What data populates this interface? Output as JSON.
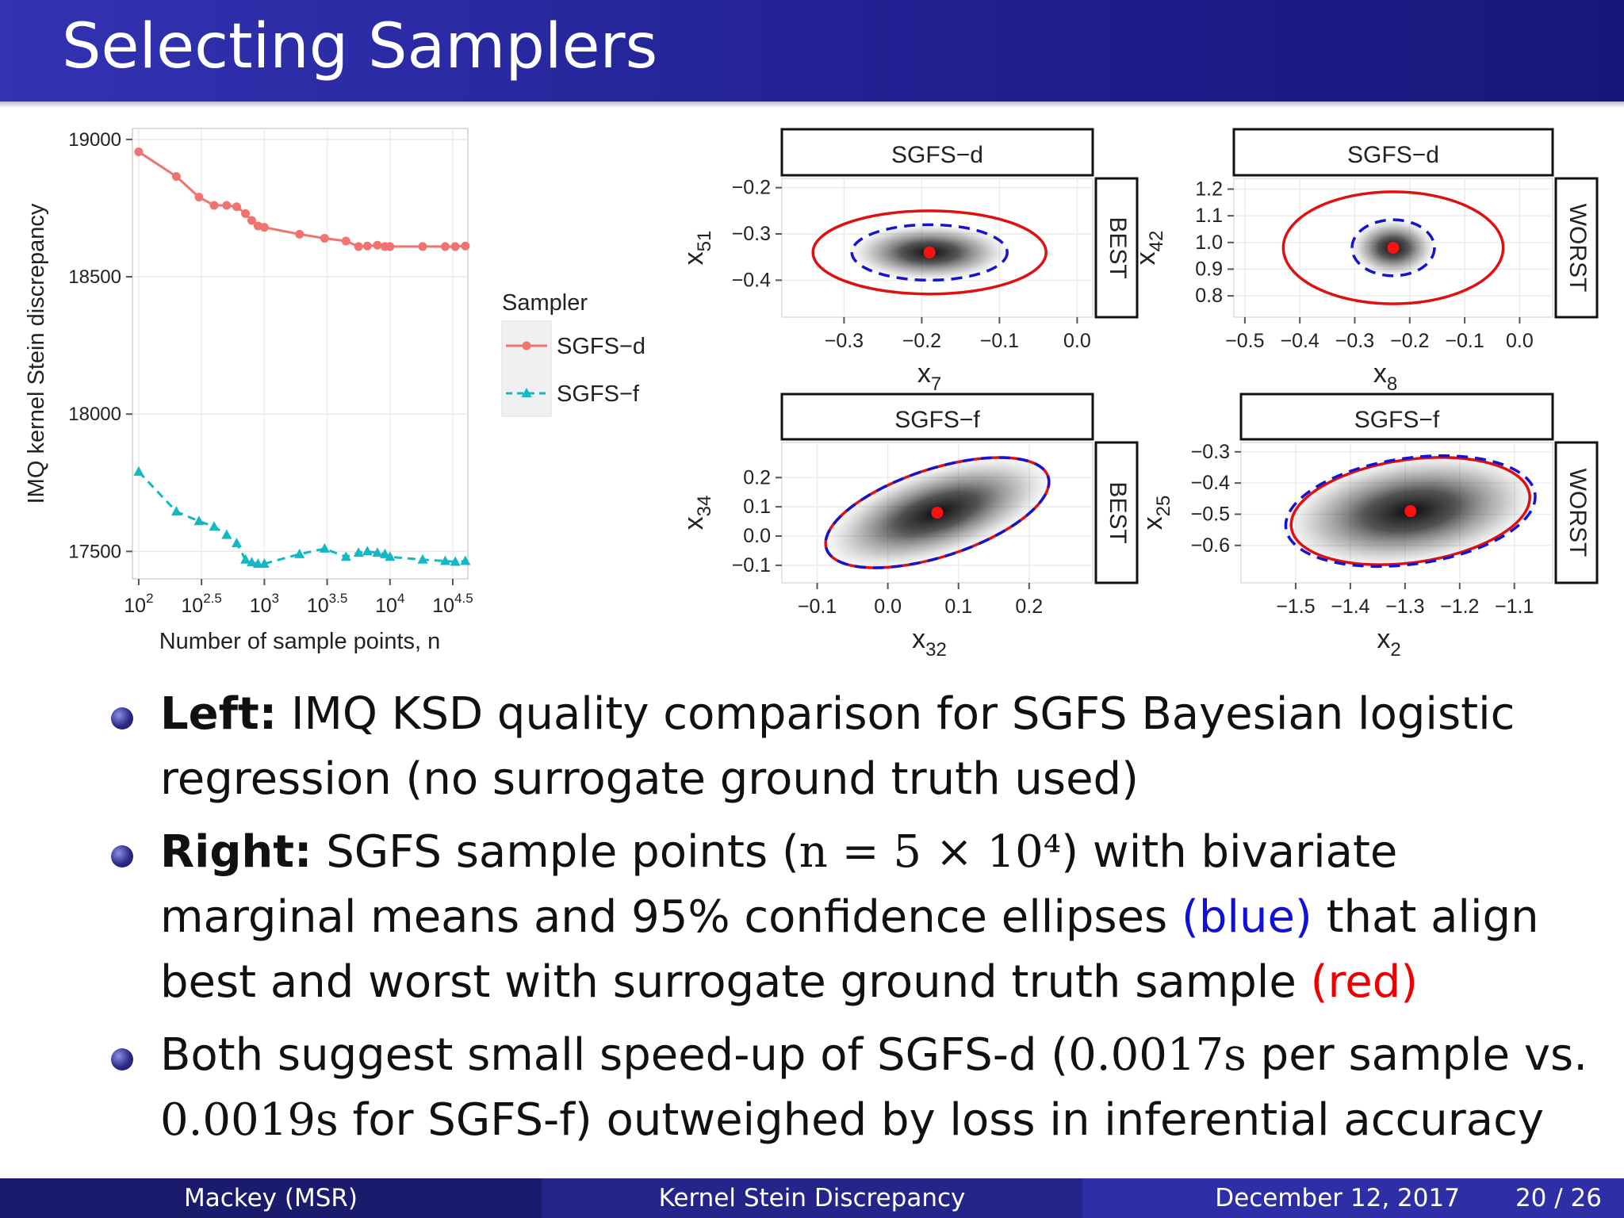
{
  "slide": {
    "title": "Selecting Samplers"
  },
  "bullets": [
    {
      "lead": "Left:",
      "text": " IMQ KSD quality comparison for SGFS Bayesian logistic regression (no surrogate ground truth used)"
    },
    {
      "lead": "Right:",
      "text_a": " SGFS sample points (",
      "math": "n = 5 × 10⁴",
      "text_b": ") with bivariate marginal means and 95% confidence ellipses ",
      "blue": "(blue)",
      "text_c": " that align best and worst with surrogate ground truth sample ",
      "red": "(red)"
    },
    {
      "text_a": "Both suggest small speed-up of SGFS-d (",
      "math1": "0.0017s",
      "text_b": " per sample vs. ",
      "math2": "0.0019s",
      "text_c": " for SGFS-f) outweighed by loss in inferential accuracy"
    }
  ],
  "footer": {
    "author": "Mackey  (MSR)",
    "talk": "Kernel Stein Discrepancy",
    "date": "December 12, 2017",
    "page": "20 / 26"
  },
  "colors": {
    "sgfs_d": "#f07370",
    "sgfs_f": "#12b8c4",
    "ellipse_blue": "#1414d0",
    "ellipse_red": "#e01010"
  },
  "chart_data": [
    {
      "type": "line",
      "ylabel": "IMQ kernel Stein discrepancy",
      "xlabel": "Number of sample points, n",
      "x_scale": "log10",
      "xlim_log10": [
        1.95,
        4.62
      ],
      "ylim": [
        17400,
        19040
      ],
      "y_ticks": [
        17500,
        18000,
        18500,
        19000
      ],
      "x_ticks_log10": [
        2,
        2.5,
        3,
        3.5,
        4,
        4.5
      ],
      "x_tick_labels": [
        {
          "base": "10",
          "exp": "2"
        },
        {
          "base": "10",
          "exp": "2.5"
        },
        {
          "base": "10",
          "exp": "3"
        },
        {
          "base": "10",
          "exp": "3.5"
        },
        {
          "base": "10",
          "exp": "4"
        },
        {
          "base": "10",
          "exp": "4.5"
        }
      ],
      "legend_title": "Sampler",
      "legend_position": "right",
      "series": [
        {
          "name": "SGFS−d",
          "style": "solid-circle",
          "x_log10": [
            2.0,
            2.3,
            2.48,
            2.6,
            2.7,
            2.78,
            2.85,
            2.9,
            2.95,
            3.0,
            3.28,
            3.48,
            3.65,
            3.75,
            3.82,
            3.9,
            3.96,
            4.0,
            4.26,
            4.44,
            4.52,
            4.6
          ],
          "values": [
            18955,
            18865,
            18790,
            18760,
            18760,
            18755,
            18730,
            18705,
            18685,
            18680,
            18655,
            18640,
            18630,
            18610,
            18612,
            18615,
            18610,
            18610,
            18610,
            18610,
            18610,
            18612
          ]
        },
        {
          "name": "SGFS−f",
          "style": "dashed-triangle",
          "x_log10": [
            2.0,
            2.3,
            2.48,
            2.6,
            2.7,
            2.78,
            2.85,
            2.9,
            2.95,
            3.0,
            3.28,
            3.48,
            3.65,
            3.75,
            3.82,
            3.9,
            3.96,
            4.0,
            4.26,
            4.44,
            4.52,
            4.6
          ],
          "values": [
            17790,
            17645,
            17610,
            17590,
            17560,
            17530,
            17470,
            17460,
            17455,
            17455,
            17490,
            17510,
            17480,
            17495,
            17500,
            17495,
            17490,
            17480,
            17470,
            17465,
            17462,
            17465
          ]
        }
      ]
    },
    {
      "type": "scatter",
      "facet": "SGFS−d",
      "strip": "BEST",
      "xlabel": "x",
      "xlabel_sub": "7",
      "ylabel": "x",
      "ylabel_sub": "51",
      "xlim": [
        -0.38,
        0.02
      ],
      "ylim": [
        -0.48,
        -0.18
      ],
      "x_ticks": [
        -0.3,
        -0.2,
        -0.1,
        0.0
      ],
      "y_ticks": [
        -0.2,
        -0.3,
        -0.4
      ],
      "mean": [
        -0.19,
        -0.34
      ],
      "blue_ellipse": {
        "cx": -0.19,
        "cy": -0.34,
        "rx": 0.1,
        "ry": 0.06
      },
      "red_ellipse": {
        "cx": -0.19,
        "cy": -0.34,
        "rx": 0.15,
        "ry": 0.09
      }
    },
    {
      "type": "scatter",
      "facet": "SGFS−d",
      "strip": "WORST",
      "xlabel": "x",
      "xlabel_sub": "8",
      "ylabel": "x",
      "ylabel_sub": "42",
      "xlim": [
        -0.52,
        0.06
      ],
      "ylim": [
        0.72,
        1.24
      ],
      "x_ticks": [
        -0.5,
        -0.4,
        -0.3,
        -0.2,
        -0.1,
        0.0
      ],
      "y_ticks": [
        1.2,
        1.1,
        1.0,
        0.9,
        0.8
      ],
      "mean": [
        -0.23,
        0.98
      ],
      "blue_ellipse": {
        "cx": -0.23,
        "cy": 0.98,
        "rx": 0.075,
        "ry": 0.105
      },
      "red_ellipse": {
        "cx": -0.23,
        "cy": 0.98,
        "rx": 0.2,
        "ry": 0.21
      }
    },
    {
      "type": "scatter",
      "facet": "SGFS−f",
      "strip": "BEST",
      "xlabel": "x",
      "xlabel_sub": "32",
      "ylabel": "x",
      "ylabel_sub": "34",
      "xlim": [
        -0.15,
        0.29
      ],
      "ylim": [
        -0.16,
        0.32
      ],
      "x_ticks": [
        -0.1,
        0.0,
        0.1,
        0.2
      ],
      "y_ticks": [
        0.2,
        0.1,
        0.0,
        -0.1
      ],
      "mean": [
        0.07,
        0.08
      ],
      "blue_ellipse": {
        "cx": 0.07,
        "cy": 0.08,
        "rx": 0.165,
        "ry": 0.15,
        "rotate": 18
      },
      "red_ellipse": {
        "cx": 0.07,
        "cy": 0.08,
        "rx": 0.165,
        "ry": 0.15,
        "rotate": 18
      }
    },
    {
      "type": "scatter",
      "facet": "SGFS−f",
      "strip": "WORST",
      "xlabel": "x",
      "xlabel_sub": "2",
      "ylabel": "x",
      "ylabel_sub": "25",
      "xlim": [
        -1.6,
        -1.03
      ],
      "ylim": [
        -0.72,
        -0.27
      ],
      "x_ticks": [
        -1.5,
        -1.4,
        -1.3,
        -1.2,
        -1.1
      ],
      "y_ticks": [
        -0.3,
        -0.4,
        -0.5,
        -0.6
      ],
      "mean": [
        -1.29,
        -0.49
      ],
      "blue_ellipse": {
        "cx": -1.29,
        "cy": -0.49,
        "rx": 0.23,
        "ry": 0.17,
        "rotate": 8
      },
      "red_ellipse": {
        "cx": -1.29,
        "cy": -0.49,
        "rx": 0.22,
        "ry": 0.165,
        "rotate": 8
      }
    }
  ]
}
